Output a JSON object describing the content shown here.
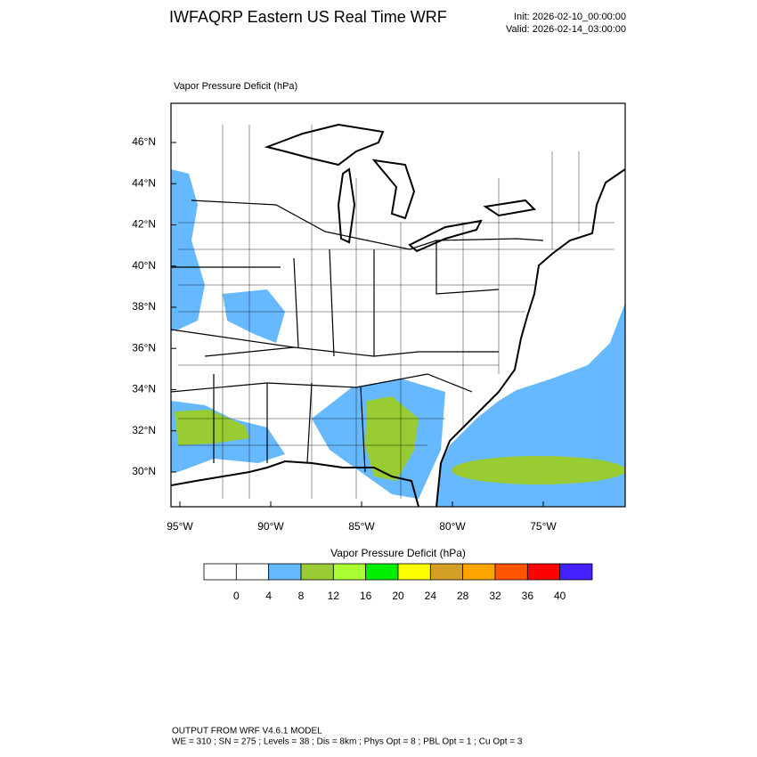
{
  "header": {
    "title": "IWFAQRP Eastern US Real Time WRF",
    "init": "Init: 2026-02-10_00:00:00",
    "valid": "Valid: 2026-02-14_03:00:00"
  },
  "map": {
    "title": "Vapor Pressure Deficit   (hPa)",
    "lat_labels": [
      "46°N",
      "44°N",
      "42°N",
      "40°N",
      "38°N",
      "36°N",
      "34°N",
      "32°N",
      "30°N"
    ],
    "lon_labels": [
      "95°W",
      "90°W",
      "85°W",
      "80°W",
      "75°W"
    ]
  },
  "colorbar": {
    "title": "Vapor Pressure Deficit  (hPa)",
    "levels": [
      0,
      4,
      8,
      12,
      16,
      20,
      24,
      28,
      32,
      36,
      40
    ],
    "colors": [
      "#ffffff",
      "#ffffff",
      "#66b8ff",
      "#99cc33",
      "#aaff33",
      "#00ee00",
      "#ffff00",
      "#d4a024",
      "#ffa500",
      "#ff5500",
      "#ff0000",
      "#4422ff"
    ]
  },
  "footer": {
    "line1": "OUTPUT FROM WRF V4.6.1 MODEL",
    "line2": "WE = 310 ; SN = 275 ; Levels = 38 ; Dis = 8km ; Phys Opt = 8 ; PBL Opt = 1 ; Cu Opt = 3"
  }
}
